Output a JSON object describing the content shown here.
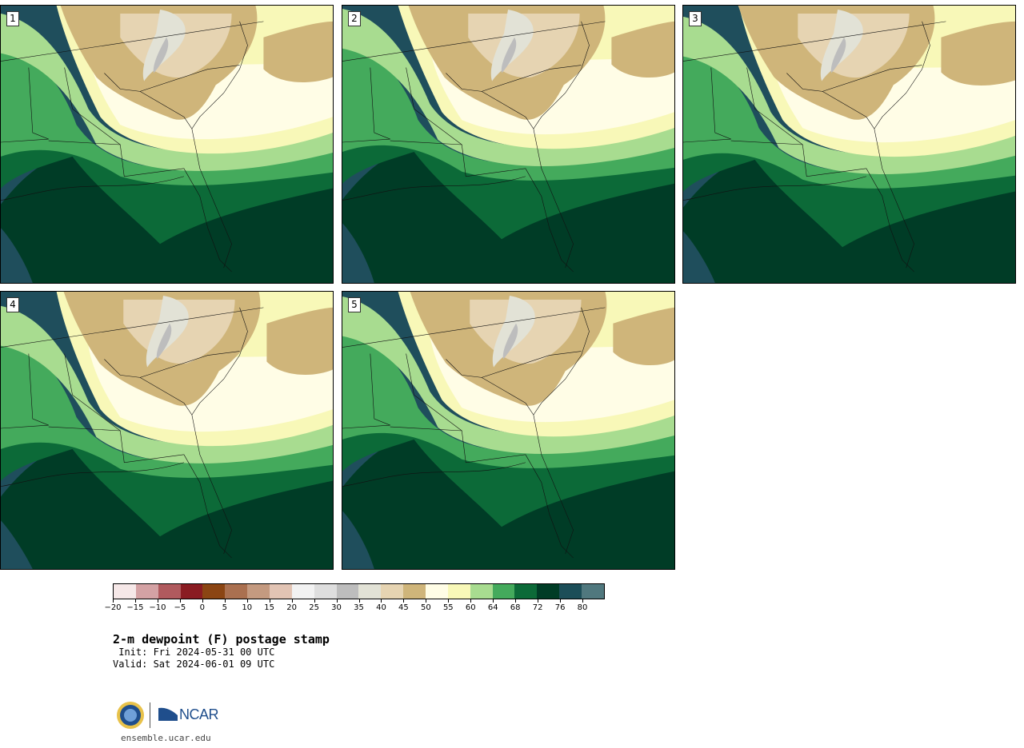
{
  "panels": [
    {
      "number": "1"
    },
    {
      "number": "2"
    },
    {
      "number": "3"
    },
    {
      "number": "4"
    },
    {
      "number": "5"
    }
  ],
  "colorbar": {
    "colors": [
      "#f6e8e8",
      "#d4a2a4",
      "#b05a5e",
      "#8a1c22",
      "#8b4513",
      "#aa7050",
      "#c49a80",
      "#e2c4b4",
      "#f2f2f2",
      "#dedede",
      "#bdbdbd",
      "#e2e2d6",
      "#e6d4b2",
      "#cfb57a",
      "#fffde6",
      "#f8f8b8",
      "#a8dc90",
      "#44aa5c",
      "#0c6a38",
      "#003c26",
      "#1c4e58",
      "#50787e"
    ],
    "tick_labels": [
      "−20",
      "−15",
      "−10",
      "−5",
      "0",
      "5",
      "10",
      "15",
      "20",
      "25",
      "30",
      "35",
      "40",
      "45",
      "50",
      "55",
      "60",
      "64",
      "68",
      "72",
      "76",
      "80"
    ]
  },
  "title": "2-m dewpoint (F) postage stamp",
  "init": " Init: Fri 2024-05-31 00 UTC",
  "valid": "Valid: Sat 2024-06-01 09 UTC",
  "logos": {
    "ncar": "NCAR"
  },
  "site": "ensemble.ucar.edu",
  "map_colors": {
    "ocean": "#1f4e5c",
    "c72_76": "#003c26",
    "c68_72": "#0c6a38",
    "c64_68": "#44aa5c",
    "c60_64": "#a8dc90",
    "c55_60": "#f8f8b8",
    "c50_55": "#fffde6",
    "c45_50": "#cfb57a",
    "c40_45": "#e6d4b2",
    "c35_40": "#e2e2d6",
    "c30_35": "#bdbdbd"
  }
}
